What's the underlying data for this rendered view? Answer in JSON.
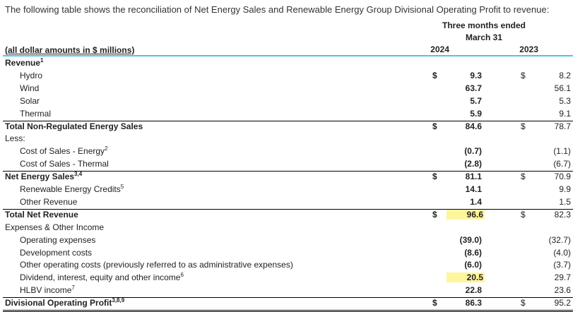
{
  "intro": "The following table shows the reconciliation of Net Energy Sales and Renewable Energy Group Divisional Operating Profit to revenue:",
  "header": {
    "period_line1": "Three months ended",
    "period_line2": "March 31",
    "col_label": "(all dollar amounts in $ millions)",
    "year_current": "2024",
    "year_prior": "2023"
  },
  "colors": {
    "accent": "#4fc3e6",
    "highlight": "#fff59d",
    "rule": "#000000"
  },
  "rows": [
    {
      "label": "Revenue",
      "sup": "1",
      "indent": 0,
      "bold": true,
      "d24": "",
      "v24": "",
      "d23": "",
      "v23": ""
    },
    {
      "label": "Hydro",
      "sup": "",
      "indent": 2,
      "bold": false,
      "d24": "$",
      "v24": "9.3",
      "d23": "$",
      "v23": "8.2"
    },
    {
      "label": "Wind",
      "sup": "",
      "indent": 2,
      "bold": false,
      "d24": "",
      "v24": "63.7",
      "d23": "",
      "v23": "56.1"
    },
    {
      "label": "Solar",
      "sup": "",
      "indent": 2,
      "bold": false,
      "d24": "",
      "v24": "5.7",
      "d23": "",
      "v23": "5.3"
    },
    {
      "label": "Thermal",
      "sup": "",
      "indent": 2,
      "bold": false,
      "d24": "",
      "v24": "5.9",
      "d23": "",
      "v23": "9.1"
    },
    {
      "label": "Total Non-Regulated Energy Sales",
      "sup": "",
      "indent": 0,
      "bold": true,
      "d24": "$",
      "v24": "84.6",
      "d23": "$",
      "v23": "78.7"
    },
    {
      "label": "Less:",
      "sup": "",
      "indent": 0,
      "bold": false,
      "d24": "",
      "v24": "",
      "d23": "",
      "v23": ""
    },
    {
      "label": "Cost of Sales - Energy",
      "sup": "2",
      "indent": 2,
      "bold": false,
      "d24": "",
      "v24": "(0.7)",
      "d23": "",
      "v23": "(1.1)"
    },
    {
      "label": "Cost of Sales - Thermal",
      "sup": "",
      "indent": 2,
      "bold": false,
      "d24": "",
      "v24": "(2.8)",
      "d23": "",
      "v23": "(6.7)"
    },
    {
      "label": "Net Energy Sales",
      "sup": "3,4",
      "indent": 0,
      "bold": true,
      "d24": "$",
      "v24": "81.1",
      "d23": "$",
      "v23": "70.9"
    },
    {
      "label": "Renewable Energy Credits",
      "sup": "5",
      "indent": 2,
      "bold": false,
      "d24": "",
      "v24": "14.1",
      "d23": "",
      "v23": "9.9"
    },
    {
      "label": "Other Revenue",
      "sup": "",
      "indent": 2,
      "bold": false,
      "d24": "",
      "v24": "1.4",
      "d23": "",
      "v23": "1.5"
    },
    {
      "label": "Total Net Revenue",
      "sup": "",
      "indent": 0,
      "bold": true,
      "d24": "$",
      "v24": "96.6",
      "d23": "$",
      "v23": "82.3",
      "hl": true
    },
    {
      "label": "Expenses & Other Income",
      "sup": "",
      "indent": 0,
      "bold": false,
      "d24": "",
      "v24": "",
      "d23": "",
      "v23": ""
    },
    {
      "label": "Operating expenses",
      "sup": "",
      "indent": 2,
      "bold": false,
      "d24": "",
      "v24": "(39.0)",
      "d23": "",
      "v23": "(32.7)"
    },
    {
      "label": "Development costs",
      "sup": "",
      "indent": 2,
      "bold": false,
      "d24": "",
      "v24": "(8.6)",
      "d23": "",
      "v23": "(4.0)"
    },
    {
      "label": "Other operating costs (previously referred to as administrative expenses)",
      "sup": "",
      "indent": 2,
      "bold": false,
      "d24": "",
      "v24": "(6.0)",
      "d23": "",
      "v23": "(3.7)"
    },
    {
      "label": "Dividend, interest, equity and other income",
      "sup": "6",
      "indent": 2,
      "bold": false,
      "d24": "",
      "v24": "20.5",
      "d23": "",
      "v23": "29.7",
      "hl": true
    },
    {
      "label": "HLBV income",
      "sup": "7",
      "indent": 2,
      "bold": false,
      "d24": "",
      "v24": "22.8",
      "d23": "",
      "v23": "23.6"
    },
    {
      "label": "Divisional Operating Profit",
      "sup": "3,8,9",
      "indent": 0,
      "bold": true,
      "d24": "$",
      "v24": "86.3",
      "d23": "$",
      "v23": "95.2"
    }
  ]
}
